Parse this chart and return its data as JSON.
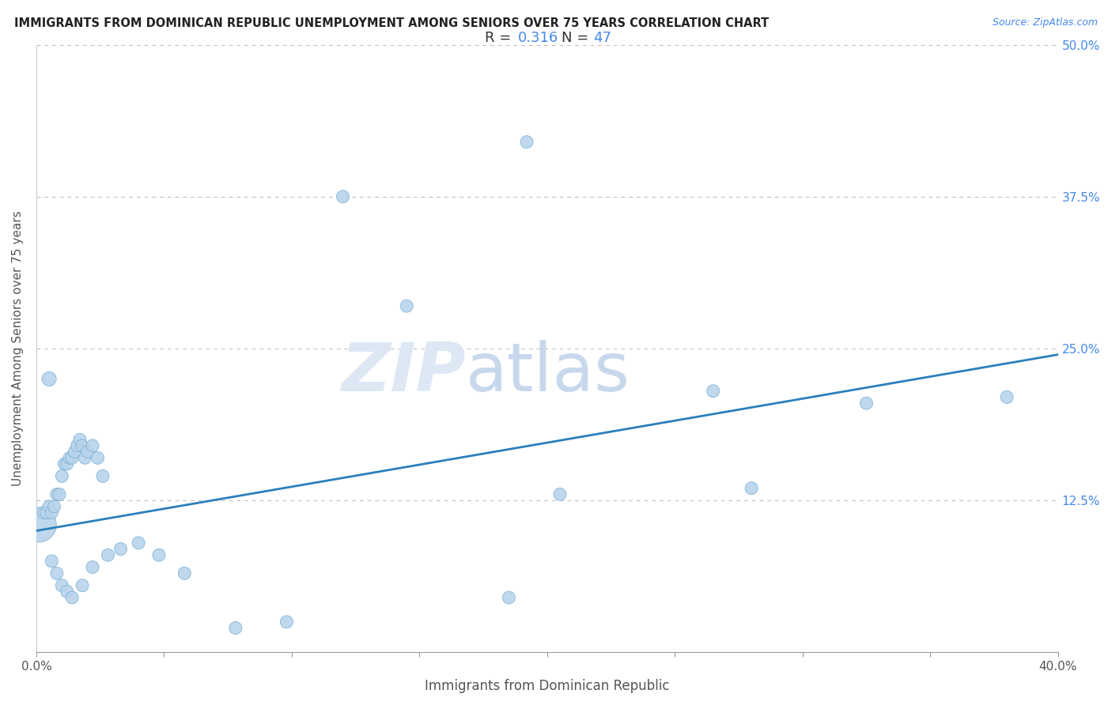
{
  "title": "IMMIGRANTS FROM DOMINICAN REPUBLIC UNEMPLOYMENT AMONG SENIORS OVER 75 YEARS CORRELATION CHART",
  "source": "Source: ZipAtlas.com",
  "xlabel": "Immigrants from Dominican Republic",
  "ylabel": "Unemployment Among Seniors over 75 years",
  "R": 0.316,
  "N": 47,
  "xlim": [
    0.0,
    0.4
  ],
  "ylim": [
    0.0,
    0.5
  ],
  "xticks": [
    0.0,
    0.05,
    0.1,
    0.15,
    0.2,
    0.25,
    0.3,
    0.35,
    0.4
  ],
  "xtick_labels_show": [
    "0.0%",
    "",
    "",
    "",
    "",
    "",
    "",
    "",
    "40.0%"
  ],
  "ytick_labels_right": [
    "50.0%",
    "37.5%",
    "25.0%",
    "12.5%",
    ""
  ],
  "yticks_right": [
    0.5,
    0.375,
    0.25,
    0.125,
    0.0
  ],
  "scatter_color": "#b8d4ec",
  "scatter_edge_color": "#7aafd4",
  "line_color": "#2a7fbc",
  "background_color": "#ffffff",
  "grid_color": "#bbbbbb",
  "annotation_box_facecolor": "#f8f9ff",
  "annotation_box_edgecolor": "#d0d0d0",
  "R_color": "#4488ee",
  "N_color": "#4488ee",
  "label_color": "#555555",
  "title_color": "#222222",
  "source_color": "#4488ee",
  "watermark_zip_color": "#dde8f4",
  "watermark_atlas_color": "#c8d8ec",
  "points": [
    [
      0.002,
      0.105,
      38
    ],
    [
      0.003,
      0.115,
      14
    ],
    [
      0.004,
      0.13,
      14
    ],
    [
      0.005,
      0.12,
      14
    ],
    [
      0.006,
      0.115,
      14
    ],
    [
      0.007,
      0.105,
      14
    ],
    [
      0.008,
      0.115,
      14
    ],
    [
      0.009,
      0.125,
      14
    ],
    [
      0.01,
      0.13,
      14
    ],
    [
      0.011,
      0.12,
      14
    ],
    [
      0.012,
      0.145,
      14
    ],
    [
      0.013,
      0.13,
      14
    ],
    [
      0.014,
      0.14,
      14
    ],
    [
      0.015,
      0.16,
      14
    ],
    [
      0.016,
      0.165,
      14
    ],
    [
      0.017,
      0.155,
      14
    ],
    [
      0.018,
      0.17,
      14
    ],
    [
      0.019,
      0.175,
      14
    ],
    [
      0.02,
      0.155,
      14
    ],
    [
      0.022,
      0.17,
      14
    ],
    [
      0.025,
      0.165,
      14
    ],
    [
      0.027,
      0.17,
      14
    ],
    [
      0.028,
      0.145,
      14
    ],
    [
      0.005,
      0.225,
      16
    ],
    [
      0.007,
      0.095,
      14
    ],
    [
      0.008,
      0.085,
      14
    ],
    [
      0.01,
      0.075,
      14
    ],
    [
      0.011,
      0.065,
      14
    ],
    [
      0.012,
      0.055,
      14
    ],
    [
      0.013,
      0.05,
      14
    ],
    [
      0.016,
      0.055,
      14
    ],
    [
      0.02,
      0.07,
      14
    ],
    [
      0.025,
      0.085,
      14
    ],
    [
      0.03,
      0.09,
      14
    ],
    [
      0.035,
      0.095,
      14
    ],
    [
      0.04,
      0.085,
      14
    ],
    [
      0.05,
      0.08,
      14
    ],
    [
      0.06,
      0.075,
      14
    ],
    [
      0.08,
      0.02,
      14
    ],
    [
      0.1,
      0.025,
      14
    ],
    [
      0.185,
      0.045,
      14
    ],
    [
      0.19,
      0.42,
      14
    ],
    [
      0.205,
      0.13,
      14
    ],
    [
      0.265,
      0.215,
      14
    ],
    [
      0.285,
      0.135,
      14
    ],
    [
      0.325,
      0.205,
      14
    ],
    [
      0.38,
      0.21,
      14
    ]
  ]
}
